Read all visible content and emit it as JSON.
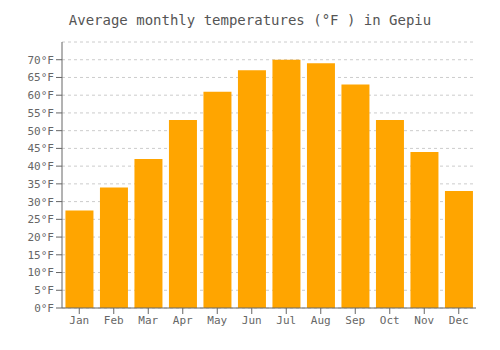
{
  "chart_data": {
    "type": "bar",
    "title": "Average monthly temperatures (°F ) in Gepiu",
    "categories": [
      "Jan",
      "Feb",
      "Mar",
      "Apr",
      "May",
      "Jun",
      "Jul",
      "Aug",
      "Sep",
      "Oct",
      "Nov",
      "Dec"
    ],
    "values": [
      27.5,
      34.0,
      42.0,
      53.0,
      61.0,
      67.0,
      70.0,
      69.0,
      63.0,
      53.0,
      44.0,
      33.0
    ],
    "color": "#FFA500",
    "ylim": [
      0,
      75
    ],
    "yticks": [
      {
        "value": 0,
        "label": "0°F"
      },
      {
        "value": 5,
        "label": "5°F"
      },
      {
        "value": 10,
        "label": "10°F"
      },
      {
        "value": 15,
        "label": "15°F"
      },
      {
        "value": 20,
        "label": "20°F"
      },
      {
        "value": 25,
        "label": "25°F"
      },
      {
        "value": 30,
        "label": "30°F"
      },
      {
        "value": 35,
        "label": "35°F"
      },
      {
        "value": 40,
        "label": "40°F"
      },
      {
        "value": 45,
        "label": "45°F"
      },
      {
        "value": 50,
        "label": "50°F"
      },
      {
        "value": 55,
        "label": "55°F"
      },
      {
        "value": 60,
        "label": "60°F"
      },
      {
        "value": 65,
        "label": "65°F"
      },
      {
        "value": 70,
        "label": "70°F"
      }
    ],
    "grid": true
  }
}
